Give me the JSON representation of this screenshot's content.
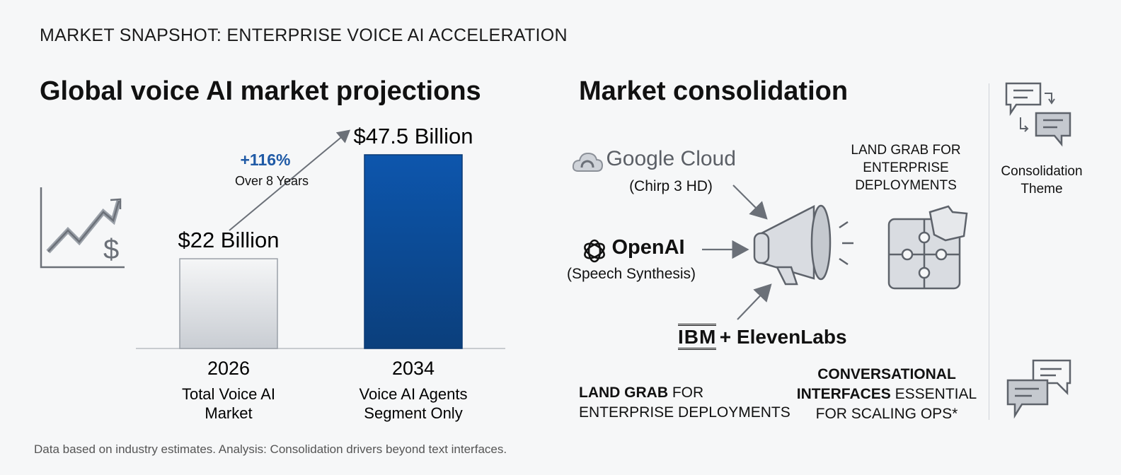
{
  "eyebrow": "MARKET SNAPSHOT: ENTERPRISE VOICE AI ACCELERATION",
  "left_title": "Global voice AI market projections",
  "right_title": "Market consolidation",
  "chart_data": {
    "type": "bar",
    "categories": [
      "2026",
      "2034"
    ],
    "category_descriptions": [
      [
        "Total Voice AI",
        "Market"
      ],
      [
        "Voice AI Agents",
        "Segment Only"
      ]
    ],
    "values": [
      22,
      47.5
    ],
    "value_labels": [
      "$22 Billion",
      "$47.5 Billion"
    ],
    "ylim": [
      0,
      52
    ],
    "bar_colors": [
      "#e3e5e9",
      "#0d4e9c"
    ],
    "growth": {
      "label": "+116%",
      "sublabel": "Over 8 Years"
    }
  },
  "vendors": {
    "google": {
      "name": "Google Cloud",
      "sub": "(Chirp 3 HD)"
    },
    "openai": {
      "name": "OpenAI",
      "sub": "(Speech Synthesis)"
    },
    "ibm": {
      "name_a": "IBM",
      "name_b": "+ ElevenLabs"
    }
  },
  "land_grab_caption": [
    "LAND GRAB FOR",
    "ENTERPRISE",
    "DEPLOYMENTS"
  ],
  "bottom_left": {
    "bold": "LAND GRAB",
    "rest1": " FOR",
    "line2": "ENTERPRISE DEPLOYMENTS"
  },
  "bottom_right": {
    "line1": "CONVERSATIONAL",
    "bold2": "INTERFACES",
    "rest2": " ESSENTIAL",
    "line3": "FOR SCALING OPS*"
  },
  "theme_label": [
    "Consolidation",
    "Theme"
  ],
  "footer": "Data based on industry estimates. Analysis: Consolidation drivers beyond text interfaces.",
  "colors": {
    "accent": "#1f5aa6",
    "bar_dark": "#0d4e9c",
    "icon_stroke": "#5e636b",
    "icon_fill": "#d9dce1"
  }
}
